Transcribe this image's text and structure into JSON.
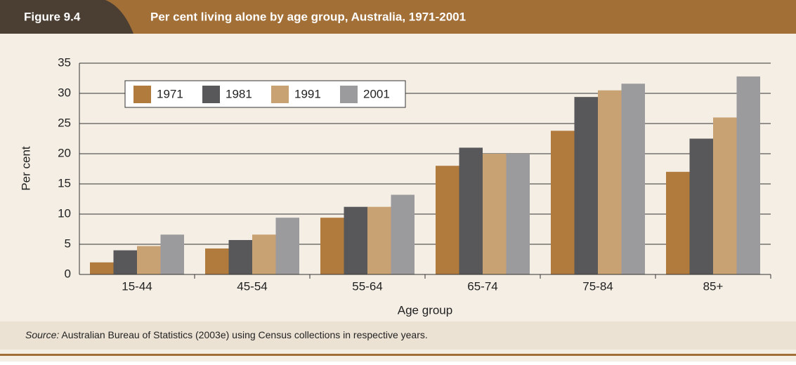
{
  "figure_label": "Figure 9.4",
  "source_label": "Source:",
  "source_text": "Australian Bureau of Statistics (2003e) using Census collections in respective years.",
  "chart_data": {
    "type": "bar",
    "title": "Per cent living alone by age group, Australia, 1971-2001",
    "x_label": "Age group",
    "y_label": "Per cent",
    "categories": [
      "15-44",
      "45-54",
      "55-64",
      "65-74",
      "75-84",
      "85+"
    ],
    "series": [
      {
        "name": "1971",
        "color": "#b07b3c",
        "values": [
          2,
          4.3,
          9.4,
          18,
          23.8,
          17
        ]
      },
      {
        "name": "1981",
        "color": "#58585a",
        "values": [
          4,
          5.7,
          11.2,
          21,
          29.4,
          22.5
        ]
      },
      {
        "name": "1991",
        "color": "#c9a273",
        "values": [
          4.7,
          6.6,
          11.2,
          20,
          30.5,
          26
        ]
      },
      {
        "name": "2001",
        "color": "#9b9b9d",
        "values": [
          6.6,
          9.4,
          13.2,
          20,
          31.6,
          32.8
        ]
      }
    ],
    "ylim": [
      0,
      35
    ],
    "yticks": [
      0,
      5,
      10,
      15,
      20,
      25,
      30,
      35
    ],
    "grid": true,
    "legend": "upper left"
  }
}
